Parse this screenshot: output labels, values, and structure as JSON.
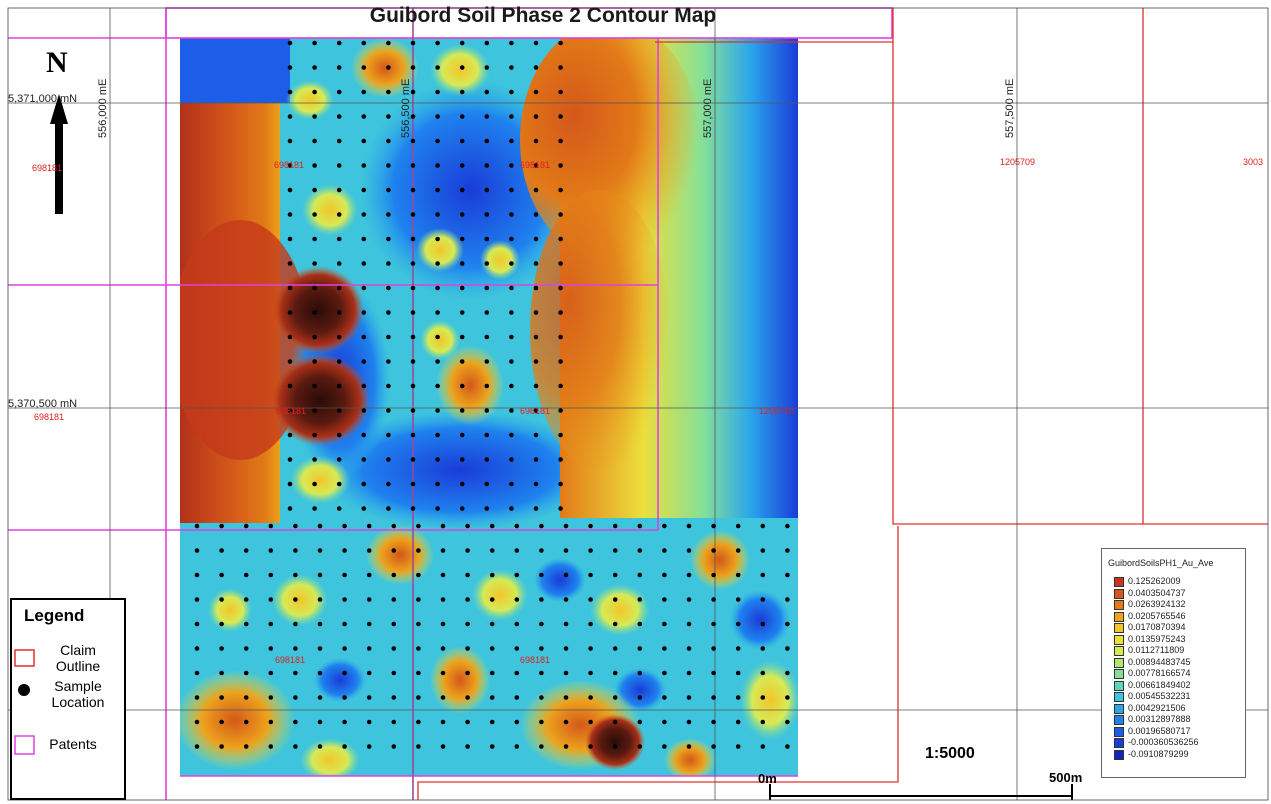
{
  "title": "Guibord Soil Phase 2 Contour Map",
  "north_label": "N",
  "grid_labels": {
    "northings": [
      "5,371,000 mN",
      "5,370,500 mN"
    ],
    "eastings": [
      "556,000 mE",
      "556,500 mE",
      "557,000 mE",
      "557,500 mE"
    ]
  },
  "claims": [
    "698181",
    "698181",
    "698181",
    "1205709",
    "3003",
    "698181",
    "698181",
    "698181",
    "1205710",
    "698181",
    "698181"
  ],
  "legend": {
    "title": "Legend",
    "claim_outline": "Claim Outline",
    "sample_location": "Sample Location",
    "patents": "Patents"
  },
  "scale": {
    "ratio": "1:5000",
    "zero_label": "0m",
    "end_label": "500m"
  },
  "color_scale": {
    "title": "GuibordSoilsPH1_Au_Ave",
    "entries": [
      {
        "label": "0.125262009",
        "color": "#c8341c"
      },
      {
        "label": "0.0403504737",
        "color": "#d4581a"
      },
      {
        "label": "0.0263924132",
        "color": "#e27a18"
      },
      {
        "label": "0.0205765546",
        "color": "#eca21c"
      },
      {
        "label": "0.0170870394",
        "color": "#f2c62a"
      },
      {
        "label": "0.0135975243",
        "color": "#ecdf3c"
      },
      {
        "label": "0.0112711809",
        "color": "#d6ea56"
      },
      {
        "label": "0.00894483745",
        "color": "#b0e874"
      },
      {
        "label": "0.00778166574",
        "color": "#86e098"
      },
      {
        "label": "0.00661849402",
        "color": "#5ed6bc"
      },
      {
        "label": "0.00545532231",
        "color": "#3ec4dc"
      },
      {
        "label": "0.0042921506",
        "color": "#2aa6ec"
      },
      {
        "label": "0.00312897888",
        "color": "#1f82ee"
      },
      {
        "label": "0.00196580717",
        "color": "#1c5ee8"
      },
      {
        "label": "-0.000360536256",
        "color": "#1a3cd8"
      },
      {
        "label": "-0.0910879299",
        "color": "#1420c0"
      }
    ]
  },
  "colors": {
    "claim_line": "#e03030",
    "patent_line": "#e040e0",
    "sample_dot": "#000000",
    "grid_line": "#555555"
  }
}
